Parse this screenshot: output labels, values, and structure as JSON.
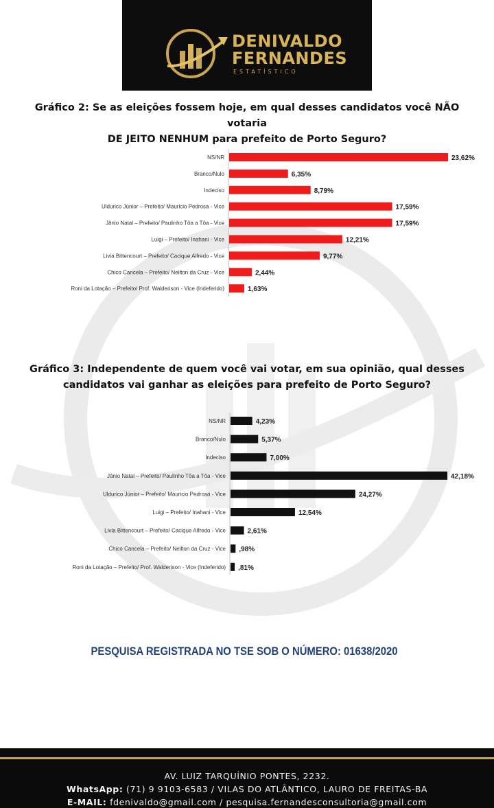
{
  "brand": {
    "name_line1": "DENIVALDO",
    "name_line2": "FERNANDES",
    "subtitle": "ESTATÍSTICO",
    "gold": "#d9b35a"
  },
  "charts": [
    {
      "title_line1": "Gráfico 2: Se as eleições fossem hoje, em qual desses candidatos você NÃO votaria",
      "title_line2": "DE JEITO NENHUM para prefeito de Porto Seguro?"
    },
    {
      "title_line1": "Gráfico 3: Independente de quem você vai votar, em sua opinião, qual desses",
      "title_line2": "candidatos vai ganhar as eleições para prefeito de Porto Seguro?"
    }
  ],
  "chart_data": [
    {
      "type": "bar",
      "orientation": "horizontal",
      "color": "#ee1c1c",
      "categories": [
        "NS/NR",
        "Branco/Nulo",
        "Indeciso",
        "Uldurico Júnior – Prefeito/ Mauricio Pedrosa - Vice",
        "Jânio Natal – Prefeito/ Paulinho Tôa a Tôa - Vice",
        "Luigi – Prefeito/ Inahani - Vice",
        "Livia Bittencourt – Prefeito/ Cacique Alfredo - Vice",
        "Chico Cancela – Prefeito/ Neilton da Cruz - Vice",
        "Roni da Lotação – Prefeito/ Prof. Walderison - Vice (Indeferido)"
      ],
      "values": [
        23.62,
        6.35,
        8.79,
        17.59,
        17.59,
        12.21,
        9.77,
        2.44,
        1.63
      ],
      "value_labels": [
        "23,62%",
        "6,35%",
        "8,79%",
        "17,59%",
        "17,59%",
        "12,21%",
        "9,77%",
        "2,44%",
        "1,63%"
      ]
    },
    {
      "type": "bar",
      "orientation": "horizontal",
      "color": "#111111",
      "categories": [
        "NS/NR",
        "Branco/Nulo",
        "Indeciso",
        "Jânio Natal – Prefeito/ Paulinho Tôa a Tôa - Vice",
        "Uldurico Júnior – Prefeito/ Mauricio Pedrosa - Vice",
        "Luigi – Prefeito/ Inahani - Vice",
        "Livia Bittencourt – Prefeito/ Cacique Alfredo - Vice",
        "Chico Cancela – Prefeito/ Neilton da Cruz - Vice",
        "Roni da Lotação – Prefeito/ Prof. Walderison - Vice (Indeferido)"
      ],
      "values": [
        4.23,
        5.37,
        7.0,
        42.18,
        24.27,
        12.54,
        2.61,
        0.98,
        0.81
      ],
      "value_labels": [
        "4,23%",
        "5,37%",
        "7,00%",
        "42,18%",
        "24,27%",
        "12,54%",
        "2,61%",
        ",98%",
        ",81%"
      ]
    }
  ],
  "registration_note": "PESQUISA REGISTRADA NO TSE SOB O NÚMERO: 01638/2020",
  "footer": {
    "address": "AV. LUIZ TARQUÍNIO PONTES, 2232.",
    "whatsapp_label": "WhatsApp:",
    "whatsapp_text": "(71) 9 9103-6583 / VILAS DO ATLÂNTICO, LAURO DE FREITAS-BA",
    "email_label": "E-MAIL:",
    "email_text": "fdenivaldo@gmail.com / pesquisa.fernandesconsultoria@gmail.com"
  }
}
